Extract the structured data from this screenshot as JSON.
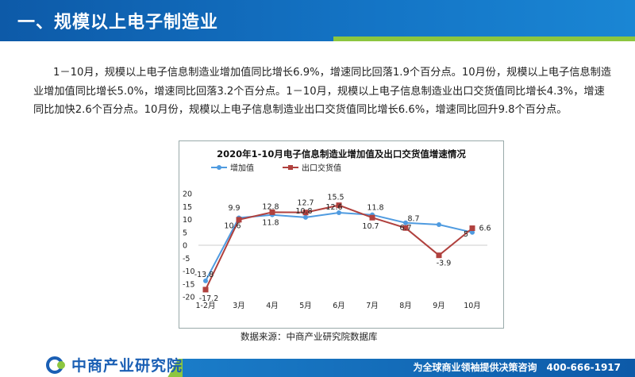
{
  "header": {
    "title": "一、规模以上电子制造业"
  },
  "body_text": "1－10月，规模以上电子信息制造业增加值同比增长6.9%，增速同比回落1.9个百分点。10月份，规模以上电子信息制造业增加值同比增长5.0%，增速同比回落3.2个百分点。1－10月，规模以上电子信息制造业出口交货值同比增长4.3%，增速同比加快2.6个百分点。10月份，规模以上电子信息制造业出口交货值同比增长6.6%，增速同比回升9.8个百分点。",
  "source": "数据来源：中商产业研究院数据库",
  "footer": {
    "logo_text": "中商产业研究院",
    "slogan": "为全球商业领袖提供决策咨询　400-666-1917"
  },
  "colors": {
    "header_blue": "#1475c6",
    "accent_green": "#8cc63f",
    "series1": "#4f9be0",
    "series2": "#b0413e"
  },
  "chart_data": {
    "type": "line",
    "title": "2020年1-10月电子信息制造业增加值及出口交货值增速情况",
    "categories": [
      "1-2月",
      "3月",
      "4月",
      "5月",
      "6月",
      "7月",
      "8月",
      "9月",
      "10月"
    ],
    "series": [
      {
        "name": "增加值",
        "values": [
          -13.8,
          10.6,
          11.8,
          10.8,
          12.6,
          11.8,
          8.7,
          8.0,
          5.0
        ],
        "labels": [
          "-13.8",
          "10.6",
          "11.8",
          "10.8",
          "12.6",
          "11.8",
          "8.7",
          "",
          "5"
        ]
      },
      {
        "name": "出口交货值",
        "values": [
          -17.2,
          9.9,
          12.8,
          12.7,
          15.5,
          10.7,
          6.7,
          -3.9,
          6.6
        ],
        "labels": [
          "-17.2",
          "9.9",
          "12.8",
          "12.7",
          "15.5",
          "10.7",
          "6.7",
          "-3.9",
          "6.6"
        ]
      }
    ],
    "yticks": [
      "20",
      "15",
      "10",
      "5",
      "0",
      "-5",
      "-10",
      "-15",
      "-20"
    ],
    "ylim": [
      -20,
      20
    ],
    "legend_position": "top-left"
  }
}
